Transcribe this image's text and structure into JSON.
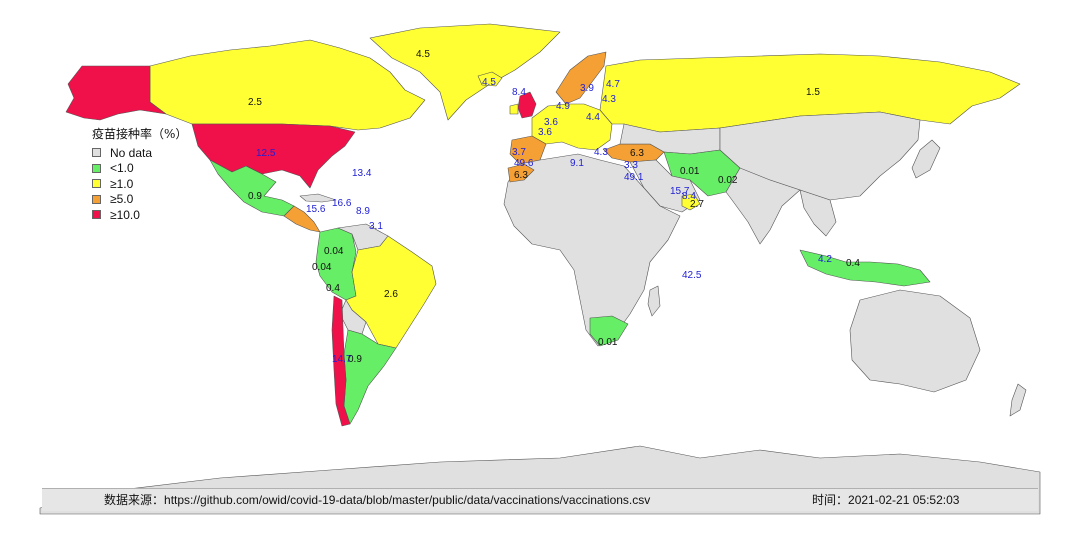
{
  "colors": {
    "no_data": "#e0e0e0",
    "lt1": "#66ee66",
    "ge1": "#ffff33",
    "ge5": "#f5a035",
    "ge10": "#f0104a",
    "label_blue": "#1f1fd6"
  },
  "legend": {
    "title": "疫苗接种率（%）",
    "items": [
      {
        "label": "No data",
        "color": "#e0e0e0"
      },
      {
        "label": "<1.0",
        "color": "#66ee66"
      },
      {
        "label": "≥1.0",
        "color": "#ffff33"
      },
      {
        "label": "≥5.0",
        "color": "#f5a035"
      },
      {
        "label": "≥10.0",
        "color": "#f0104a"
      }
    ]
  },
  "footer": {
    "source_prefix": "数据来源：",
    "source_url": "https://github.com/owid/covid-19-data/blob/master/public/data/vaccinations/vaccinations.csv",
    "time_prefix": "时间：",
    "time_value": "2021-02-21 05:52:03"
  },
  "chart_data": {
    "type": "choropleth",
    "metric": "疫苗接种率（%）",
    "regions": [
      {
        "value": "4.5"
      },
      {
        "value": "4.5"
      },
      {
        "value": "2.5"
      },
      {
        "value": "1.5"
      },
      {
        "value": "12.5"
      },
      {
        "value": "13.4"
      },
      {
        "value": "0.9"
      },
      {
        "value": "15.6"
      },
      {
        "value": "16.6"
      },
      {
        "value": "8.9"
      },
      {
        "value": "3.1"
      },
      {
        "value": "0.04"
      },
      {
        "value": "0.04"
      },
      {
        "value": "0.4"
      },
      {
        "value": "2.6"
      },
      {
        "value": "14.7"
      },
      {
        "value": "0.9"
      },
      {
        "value": "8.4"
      },
      {
        "value": "3.9"
      },
      {
        "value": "4.7"
      },
      {
        "value": "4.3"
      },
      {
        "value": "4.9"
      },
      {
        "value": "4.4"
      },
      {
        "value": "3.6"
      },
      {
        "value": "3.6"
      },
      {
        "value": "3.7"
      },
      {
        "value": "49.6"
      },
      {
        "value": "6.3"
      },
      {
        "value": "6.3"
      },
      {
        "value": "9.1"
      },
      {
        "value": "3.3"
      },
      {
        "value": "49.1"
      },
      {
        "value": "4.3"
      },
      {
        "value": "0.01"
      },
      {
        "value": "0.02"
      },
      {
        "value": "15.7"
      },
      {
        "value": "8.4"
      },
      {
        "value": "2.7"
      },
      {
        "value": "42.5"
      },
      {
        "value": "0.01"
      },
      {
        "value": "4.2"
      },
      {
        "value": "0.4"
      }
    ]
  }
}
